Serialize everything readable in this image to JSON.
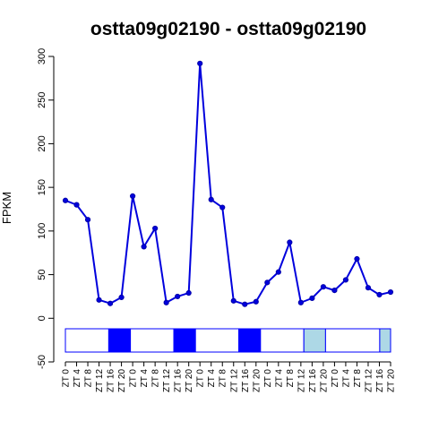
{
  "chart_data": {
    "type": "line",
    "title": "ostta09g02190 - ostta09g02190",
    "xlabel": "",
    "ylabel": "FPKM",
    "ylim": [
      -50,
      300
    ],
    "yticks": [
      -50,
      0,
      50,
      100,
      150,
      200,
      250,
      300
    ],
    "categories": [
      "ZT 0",
      "ZT 4",
      "ZT 8",
      "ZT 12",
      "ZT 16",
      "ZT 20",
      "ZT 0",
      "ZT 4",
      "ZT 8",
      "ZT 12",
      "ZT 16",
      "ZT 20",
      "ZT 0",
      "ZT 4",
      "ZT 8",
      "ZT 12",
      "ZT 16",
      "ZT 20",
      "ZT 0",
      "ZT 4",
      "ZT 8",
      "ZT 12",
      "ZT 16",
      "ZT 20",
      "ZT 0",
      "ZT 4",
      "ZT 8",
      "ZT 12",
      "ZT 16",
      "ZT 20"
    ],
    "series": [
      {
        "color": "#0000dd",
        "values": [
          135,
          130,
          113,
          21,
          17,
          24,
          140,
          82,
          103,
          18,
          25,
          29,
          292,
          136,
          127,
          20,
          16,
          19,
          41,
          53,
          87,
          18,
          23,
          36,
          32,
          44,
          68,
          35,
          27,
          30
        ]
      }
    ],
    "light_bar": {
      "colors": {
        "light": "#ffffff",
        "dark": "#0000ff",
        "subjective": "#add8e6"
      },
      "border_color": "#0000ff",
      "segments": [
        "light",
        "light",
        "light",
        "light",
        "dark",
        "dark",
        "light",
        "light",
        "light",
        "light",
        "dark",
        "dark",
        "light",
        "light",
        "light",
        "light",
        "dark",
        "dark",
        "light",
        "light",
        "light",
        "light",
        "subjective",
        "subjective",
        "light",
        "light",
        "light",
        "light",
        "light",
        "subjective"
      ]
    },
    "grid": false,
    "legend": "none"
  }
}
